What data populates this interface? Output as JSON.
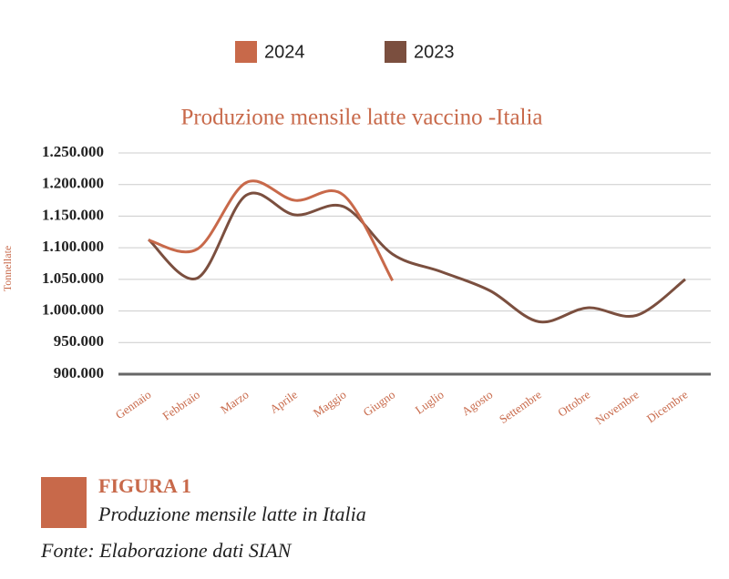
{
  "chart_data": {
    "type": "line",
    "title": "Produzione mensile latte vaccino -Italia",
    "ylabel": "Tonnellate",
    "categories": [
      "Gennaio",
      "Febbraio",
      "Marzo",
      "Aprile",
      "Maggio",
      "Giugno",
      "Luglio",
      "Agosto",
      "Settembre",
      "Ottobre",
      "Novembre",
      "Dicembre"
    ],
    "series": [
      {
        "name": "2024",
        "color": "#c8694a",
        "values": [
          1112000,
          1098000,
          1203000,
          1175000,
          1183000,
          1048000,
          null,
          null,
          null,
          null,
          null,
          null
        ]
      },
      {
        "name": "2023",
        "color": "#7b4f3f",
        "values": [
          1113000,
          1052000,
          1183000,
          1152000,
          1165000,
          1090000,
          1062000,
          1032000,
          983000,
          1005000,
          993000,
          1050000
        ]
      }
    ],
    "ylim": [
      900000,
      1250000
    ],
    "yticks": [
      {
        "value": 900000,
        "label": "900.000"
      },
      {
        "value": 950000,
        "label": "950.000"
      },
      {
        "value": 1000000,
        "label": "1.000.000"
      },
      {
        "value": 1050000,
        "label": "1.050.000"
      },
      {
        "value": 1100000,
        "label": "1.100.000"
      },
      {
        "value": 1150000,
        "label": "1.150.000"
      },
      {
        "value": 1200000,
        "label": "1.200.000"
      },
      {
        "value": 1250000,
        "label": "1.250.000"
      }
    ],
    "grid": true,
    "legend": "top"
  },
  "figure": {
    "label": "FIGURA 1",
    "caption": "Produzione mensile latte in Italia",
    "source": "Fonte: Elaborazione dati SIAN"
  }
}
